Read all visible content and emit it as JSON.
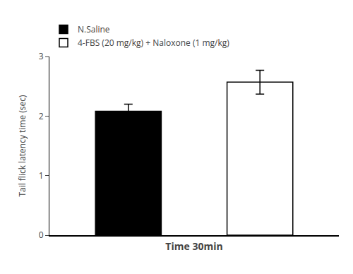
{
  "chart_data": {
    "type": "bar",
    "categories": [
      "N.Saline",
      "4-FBS (20 mg/kg) + Naloxone (1 mg/kg)"
    ],
    "values": [
      2.08,
      2.57
    ],
    "errors": [
      0.12,
      0.2
    ],
    "colors": [
      "#000000",
      "#ffffff"
    ],
    "ylabel": "Tail flick latency time (sec)",
    "xlabel": "Time 30min",
    "ylim": [
      0,
      3
    ],
    "yticks": [
      0,
      1,
      2,
      3
    ],
    "grid": false,
    "legend": "upper left",
    "tick_labels": "y"
  }
}
